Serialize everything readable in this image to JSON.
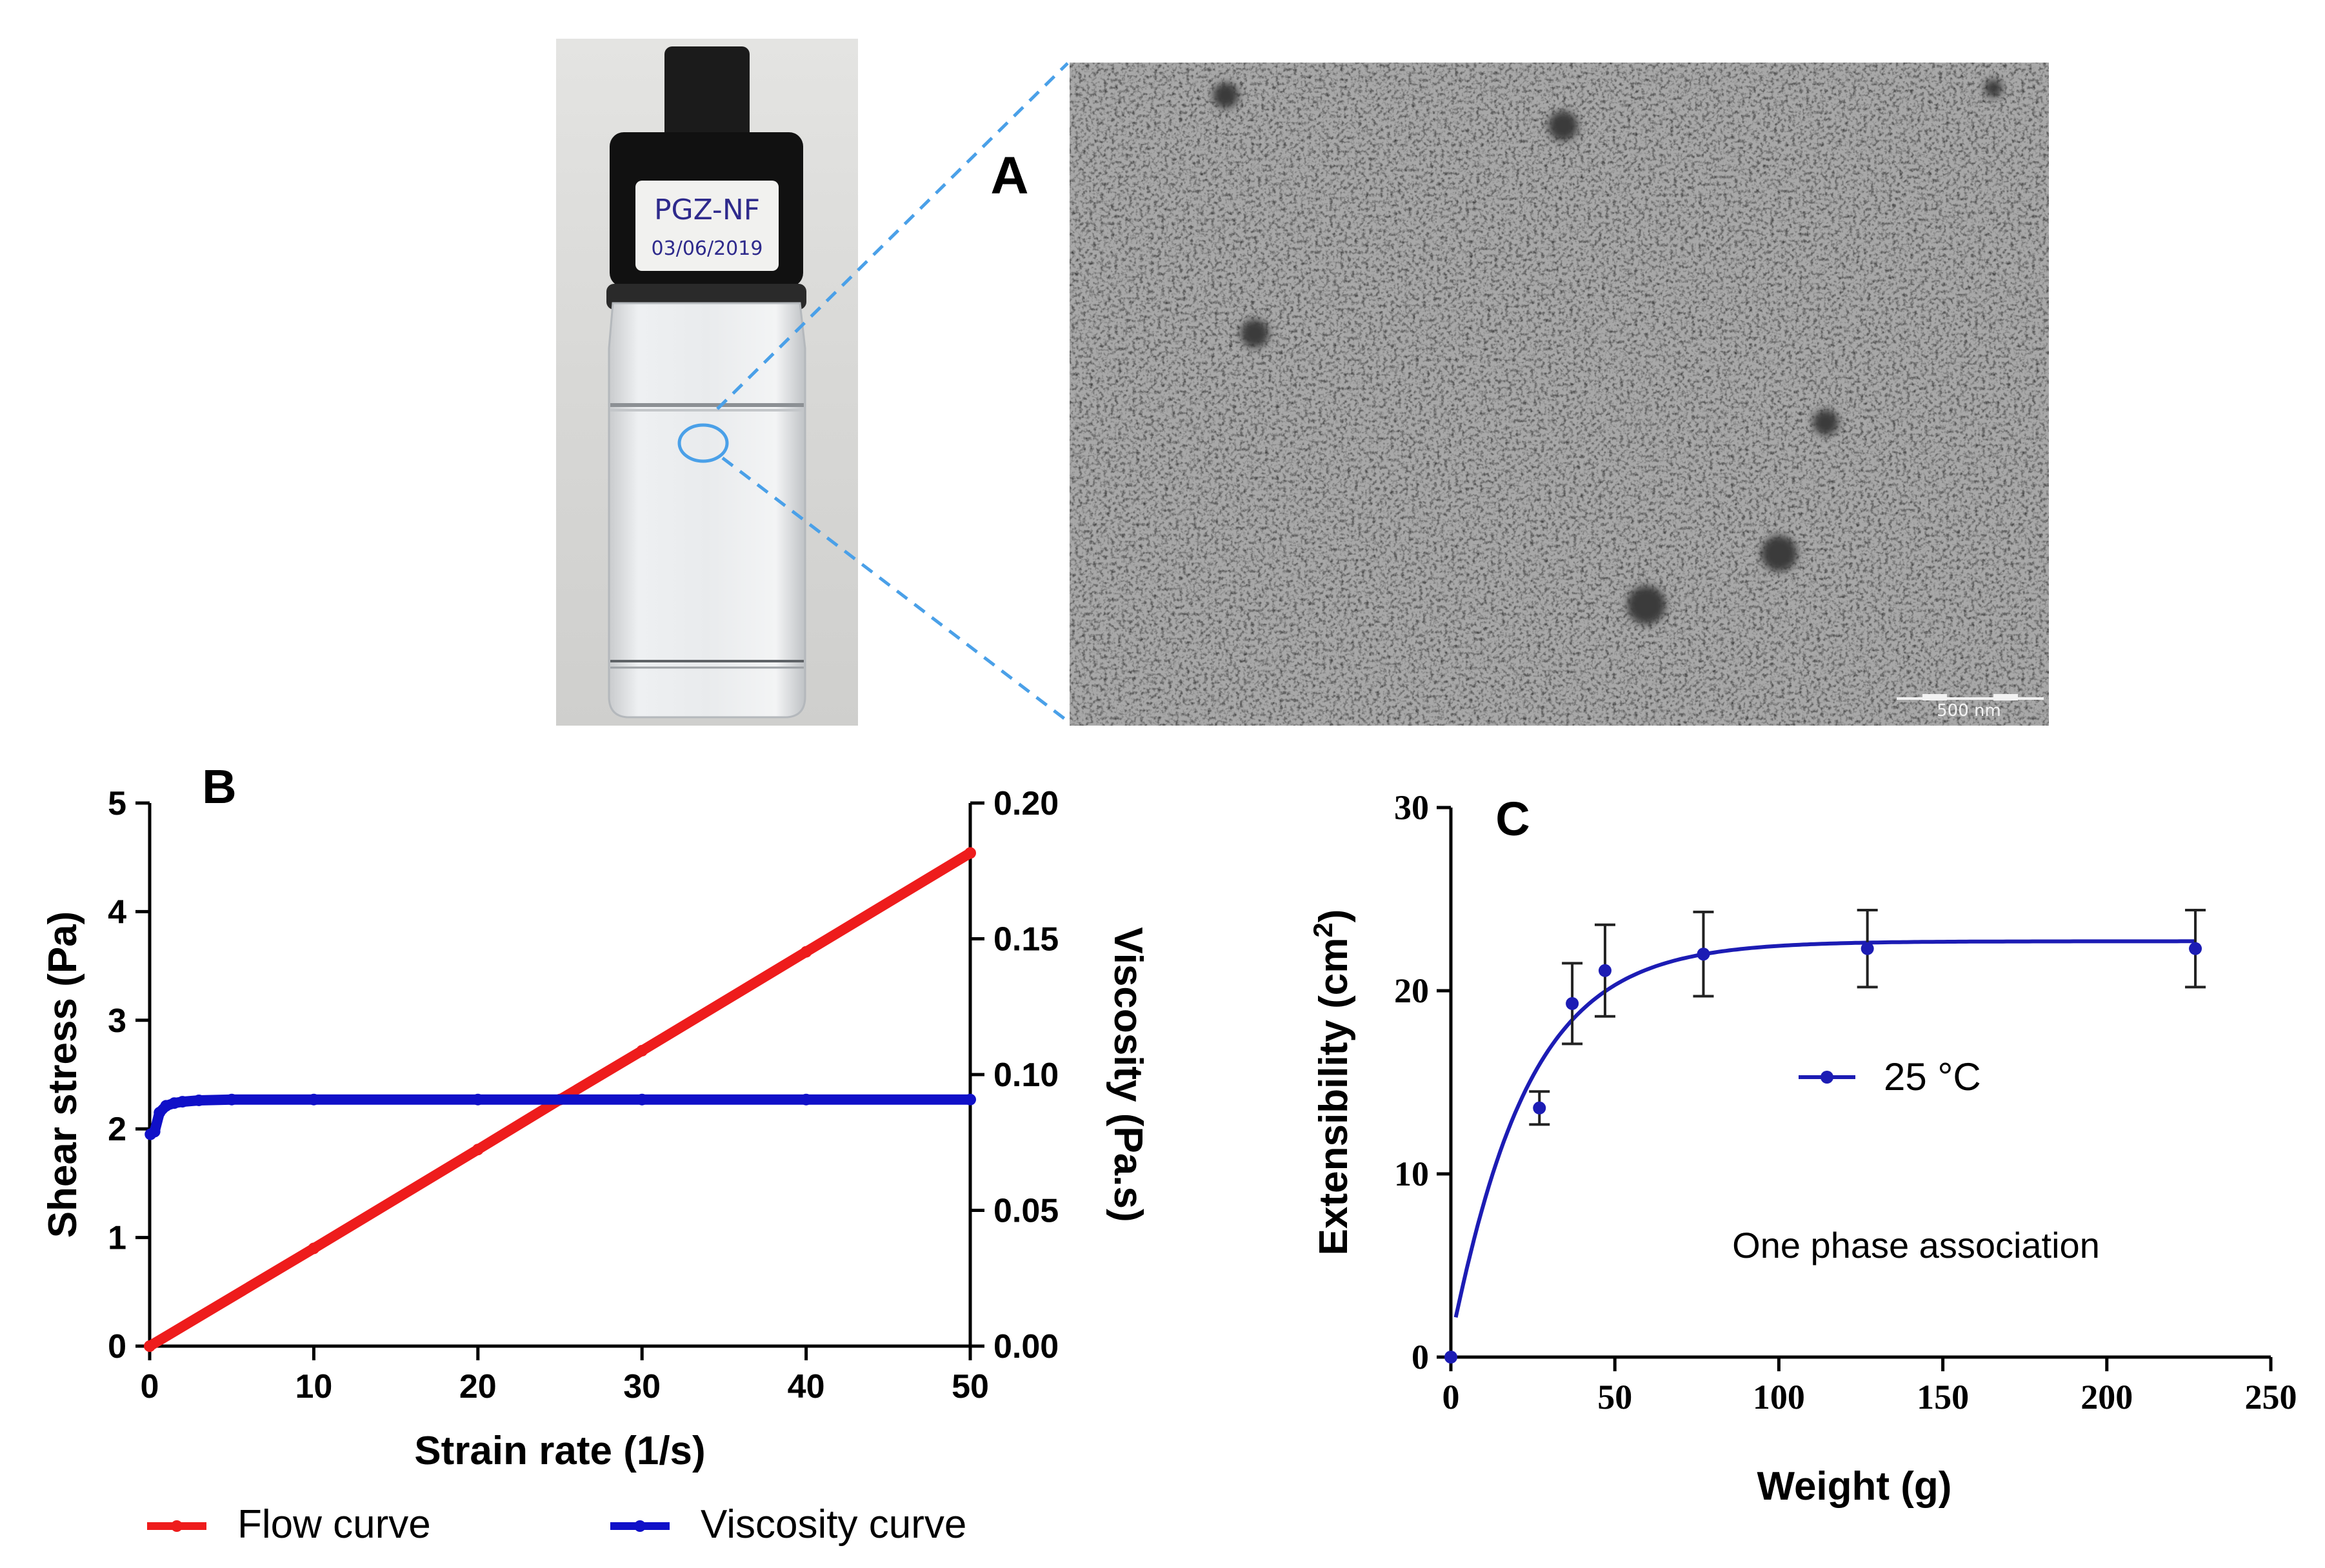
{
  "figure": {
    "panels": [
      {
        "letter": "A",
        "vial_label_line1": "PGZ-NF",
        "vial_label_line2": "03/06/2019",
        "scale_bar_label": "500 nm"
      },
      {
        "letter": "B"
      },
      {
        "letter": "C"
      }
    ]
  },
  "chart_data": [
    {
      "id": "B",
      "type": "line",
      "xlabel": "Strain rate (1/s)",
      "ylabel": "Shear stress (Pa)",
      "y2label": "Viscosity (Pa.s)",
      "xlim": [
        0,
        50
      ],
      "ylim": [
        0,
        5
      ],
      "y2lim": [
        0,
        0.2
      ],
      "xticks": [
        "0",
        "10",
        "20",
        "30",
        "40",
        "50"
      ],
      "yticks": [
        "0",
        "1",
        "2",
        "3",
        "4",
        "5"
      ],
      "y2ticks": [
        "0.00",
        "0.05",
        "0.10",
        "0.15",
        "0.20"
      ],
      "legend_position": "bottom",
      "series": [
        {
          "name": "Flow curve",
          "axis": "left",
          "color": "#ee1c1c",
          "x": [
            0,
            10,
            20,
            25,
            30,
            40,
            50
          ],
          "y": [
            0,
            0.9,
            1.81,
            2.27,
            2.72,
            3.63,
            4.54
          ]
        },
        {
          "name": "Viscosity curve",
          "axis": "right",
          "color": "#1010c8",
          "x": [
            0.05,
            0.3,
            0.6,
            1,
            1.5,
            2,
            3,
            5,
            10,
            20,
            30,
            40,
            50
          ],
          "y": [
            0.078,
            0.079,
            0.086,
            0.0885,
            0.0895,
            0.09,
            0.0905,
            0.0908,
            0.0908,
            0.0908,
            0.0908,
            0.0908,
            0.0908
          ]
        }
      ]
    },
    {
      "id": "C",
      "type": "scatter",
      "xlabel": "Weight (g)",
      "ylabel": "Extensibility (cm²)",
      "ylabel_main": "Extensibility (cm",
      "ylabel_sup": "2",
      "ylabel_end": ")",
      "xlim": [
        0,
        250
      ],
      "ylim": [
        0,
        30
      ],
      "xticks": [
        "0",
        "50",
        "100",
        "150",
        "200",
        "250"
      ],
      "yticks": [
        "0",
        "10",
        "20",
        "30"
      ],
      "annotation": "One phase association",
      "legend_position": "center-right",
      "series": [
        {
          "name": "25 °C",
          "color": "#1c1cb4",
          "x": [
            0,
            27,
            37,
            47,
            77,
            127,
            227
          ],
          "y": [
            0,
            13.6,
            19.3,
            21.1,
            22.0,
            22.3,
            22.3
          ],
          "err": [
            0,
            0.9,
            2.2,
            2.5,
            2.3,
            2.1,
            2.1
          ]
        }
      ],
      "fit": {
        "type": "one-phase association",
        "plateau": 22.7,
        "k": 0.045
      }
    }
  ]
}
